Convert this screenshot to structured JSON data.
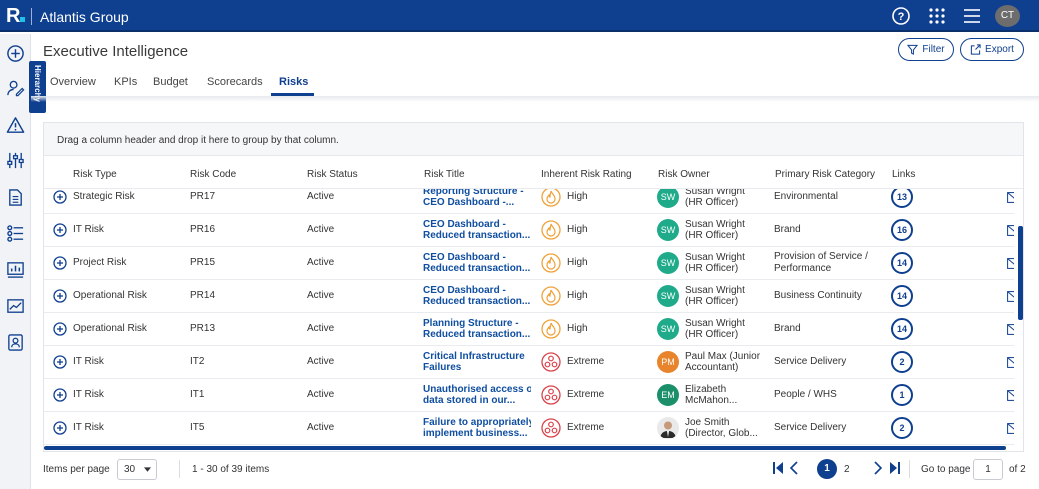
{
  "app": {
    "logo": "R",
    "title": "Atlantis Group",
    "user_initials": "CT"
  },
  "page": {
    "title": "Executive Intelligence",
    "filter_label": "Filter",
    "export_label": "Export",
    "hierarchy_label": "Hierarchy"
  },
  "tabs": [
    {
      "label": "Overview"
    },
    {
      "label": "KPIs"
    },
    {
      "label": "Budget"
    },
    {
      "label": "Scorecards"
    },
    {
      "label": "Risks"
    }
  ],
  "grid": {
    "group_hint": "Drag a column header and drop it here to group by that column.",
    "columns": [
      "Risk Type",
      "Risk Code",
      "Risk Status",
      "Risk Title",
      "Inherent Risk Rating",
      "Risk Owner",
      "Primary Risk Category",
      "Links"
    ],
    "rows": [
      {
        "type": "Strategic Risk",
        "code": "PR17",
        "status": "Active",
        "title1": "Reporting Structure -",
        "title2": "CEO Dashboard -...",
        "rating": "High",
        "owner_initials": "SW",
        "owner1": "Susan Wright",
        "owner2": "(HR Officer)",
        "cat1": "Environmental",
        "cat2": "",
        "links": "13"
      },
      {
        "type": "IT Risk",
        "code": "PR16",
        "status": "Active",
        "title1": "CEO Dashboard -",
        "title2": "Reduced transaction...",
        "rating": "High",
        "owner_initials": "SW",
        "owner1": "Susan Wright",
        "owner2": "(HR Officer)",
        "cat1": "Brand",
        "cat2": "",
        "links": "16"
      },
      {
        "type": "Project Risk",
        "code": "PR15",
        "status": "Active",
        "title1": "CEO Dashboard -",
        "title2": "Reduced transaction...",
        "rating": "High",
        "owner_initials": "SW",
        "owner1": "Susan Wright",
        "owner2": "(HR Officer)",
        "cat1": "Provision of Service /",
        "cat2": "Performance",
        "links": "14"
      },
      {
        "type": "Operational Risk",
        "code": "PR14",
        "status": "Active",
        "title1": "CEO Dashboard -",
        "title2": "Reduced transaction...",
        "rating": "High",
        "owner_initials": "SW",
        "owner1": "Susan Wright",
        "owner2": "(HR Officer)",
        "cat1": "Business Continuity",
        "cat2": "",
        "links": "14"
      },
      {
        "type": "Operational Risk",
        "code": "PR13",
        "status": "Active",
        "title1": "Planning Structure -",
        "title2": "Reduced transaction...",
        "rating": "High",
        "owner_initials": "SW",
        "owner1": "Susan Wright",
        "owner2": "(HR Officer)",
        "cat1": "Brand",
        "cat2": "",
        "links": "14"
      },
      {
        "type": "IT Risk",
        "code": "IT2",
        "status": "Active",
        "title1": "Critical Infrastructure",
        "title2": "Failures",
        "rating": "Extreme",
        "owner_initials": "PM",
        "owner1": "Paul Max (Junior",
        "owner2": "Accountant)",
        "cat1": "Service Delivery",
        "cat2": "",
        "links": "2"
      },
      {
        "type": "IT Risk",
        "code": "IT1",
        "status": "Active",
        "title1": "Unauthorised access of",
        "title2": "data stored in our...",
        "rating": "Extreme",
        "owner_initials": "EM",
        "owner1": "Elizabeth",
        "owner2": "McMahon...",
        "cat1": "People / WHS",
        "cat2": "",
        "links": "1"
      },
      {
        "type": "IT Risk",
        "code": "IT5",
        "status": "Active",
        "title1": "Failure to appropriately",
        "title2": "implement business...",
        "rating": "Extreme",
        "owner_initials": "",
        "owner1": "Joe Smith",
        "owner2": "(Director, Glob...",
        "cat1": "Service Delivery",
        "cat2": "",
        "links": "2"
      }
    ]
  },
  "footer": {
    "items_per_page_label": "Items per page",
    "items_per_page": "30",
    "range": "1 - 30 of 39 items",
    "current_page": "1",
    "next_page": "2",
    "goto_label": "Go to page",
    "goto_value": "1",
    "of_pages": "of 2"
  },
  "colors": {
    "brand": "#0f3f8f",
    "high": "#f0a23a",
    "extreme": "#d9434a",
    "sw": "#1fab8a",
    "pm": "#e8842c",
    "em": "#1a8f6a"
  }
}
